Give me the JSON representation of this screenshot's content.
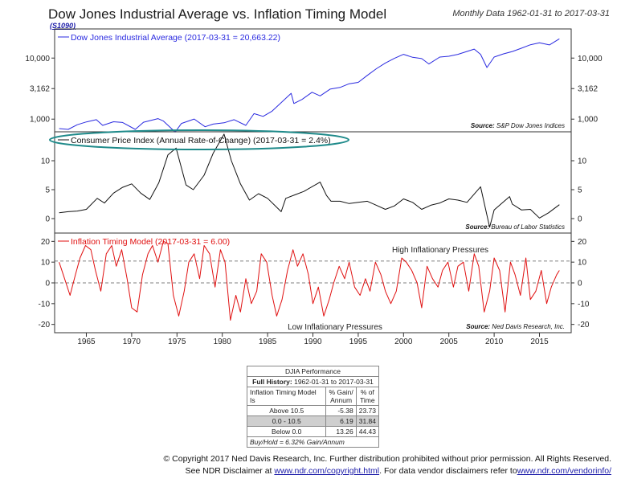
{
  "header": {
    "title": "Dow Jones Industrial Average vs. Inflation Timing Model",
    "code": "(S1090)",
    "subtitle": "Monthly Data 1962-01-31 to 2017-03-31"
  },
  "colors": {
    "djia": "#2a2ae0",
    "cpi": "#111111",
    "model": "#e01010",
    "ellipse": "#1f8a8a"
  },
  "chart_data": [
    {
      "type": "line",
      "panel": "top",
      "scale": "log",
      "legend": "Dow Jones Industrial Average (2017-03-31 = 20,663.22)",
      "source_label": "Source:",
      "source_text": "S&P Dow Jones Indices",
      "yticks": [
        1000,
        3162,
        10000
      ],
      "ytick_labels": [
        "1,000",
        "3,162",
        "10,000"
      ],
      "ylim": [
        620,
        30000
      ],
      "x": [
        1962.0,
        1963.0,
        1964.0,
        1965.0,
        1966.1,
        1966.8,
        1968.0,
        1969.0,
        1970.4,
        1971.3,
        1972.9,
        1973.5,
        1974.8,
        1975.5,
        1976.9,
        1978.1,
        1979.0,
        1980.2,
        1981.3,
        1982.6,
        1983.5,
        1984.5,
        1985.5,
        1987.6,
        1987.9,
        1988.8,
        1989.9,
        1990.8,
        1991.9,
        1993.0,
        1994.0,
        1995.0,
        1996.0,
        1997.0,
        1998.0,
        1999.0,
        2000.0,
        2001.0,
        2002.0,
        2002.8,
        2004.0,
        2005.0,
        2006.0,
        2007.8,
        2008.5,
        2009.2,
        2010.0,
        2011.0,
        2012.0,
        2013.0,
        2014.0,
        2015.0,
        2016.1,
        2017.2
      ],
      "values": [
        700,
        680,
        810,
        900,
        980,
        790,
        905,
        880,
        680,
        890,
        1020,
        930,
        615,
        850,
        1004,
        750,
        830,
        870,
        980,
        790,
        1230,
        1110,
        1350,
        2650,
        1800,
        2100,
        2750,
        2400,
        3100,
        3300,
        3800,
        4000,
        5200,
        6700,
        8300,
        9900,
        11500,
        10300,
        9800,
        8000,
        10400,
        10700,
        11500,
        14000,
        11500,
        7000,
        10400,
        11700,
        12800,
        14500,
        16500,
        17800,
        16400,
        20663
      ]
    },
    {
      "type": "line",
      "panel": "middle",
      "legend": "Consumer Price Index (Annual Rate-of-Change) (2017-03-31 = 2.4%)",
      "source_label": "Source:",
      "source_text": "Bureau of Labor Statistics",
      "yticks": [
        0,
        5,
        10
      ],
      "ytick_labels": [
        "0",
        "5",
        "10"
      ],
      "ylim": [
        -2.5,
        15
      ],
      "x": [
        1962.0,
        1963.0,
        1964.0,
        1965.0,
        1966.2,
        1967.0,
        1968.0,
        1969.0,
        1970.0,
        1971.0,
        1972.0,
        1973.0,
        1974.0,
        1974.9,
        1976.0,
        1976.8,
        1978.0,
        1979.0,
        1980.2,
        1981.0,
        1982.0,
        1983.0,
        1984.0,
        1985.0,
        1986.5,
        1987.0,
        1988.0,
        1989.0,
        1990.8,
        1991.5,
        1992.0,
        1993.0,
        1994.0,
        1995.0,
        1996.0,
        1997.0,
        1998.0,
        1999.0,
        2000.0,
        2001.0,
        2002.0,
        2003.0,
        2004.0,
        2005.0,
        2006.0,
        2007.0,
        2008.5,
        2009.5,
        2010.0,
        2011.7,
        2012.0,
        2013.0,
        2014.0,
        2015.0,
        2016.0,
        2017.2
      ],
      "values": [
        1.0,
        1.2,
        1.3,
        1.6,
        3.5,
        2.7,
        4.4,
        5.4,
        6.0,
        4.4,
        3.3,
        6.2,
        11.0,
        12.2,
        5.8,
        5.0,
        7.5,
        11.3,
        14.6,
        10.0,
        6.0,
        3.2,
        4.3,
        3.5,
        1.2,
        3.5,
        4.1,
        4.7,
        6.3,
        4.0,
        3.0,
        3.0,
        2.6,
        2.8,
        3.0,
        2.3,
        1.6,
        2.2,
        3.4,
        2.8,
        1.6,
        2.3,
        2.7,
        3.4,
        3.2,
        2.8,
        5.5,
        -1.5,
        1.5,
        3.8,
        2.5,
        1.5,
        1.6,
        0.1,
        1.0,
        2.4
      ]
    },
    {
      "type": "line",
      "panel": "bottom",
      "legend": "Inflation Timing Model (2017-03-31 = 6.00)",
      "source_label": "Source:",
      "source_text": "Ned Davis Research, Inc.",
      "high_label": "High Inflationary Pressures",
      "low_label": "Low Inflationary Pressures",
      "thresholds": [
        10.5,
        0
      ],
      "yticks": [
        -20,
        -10,
        0,
        10,
        20
      ],
      "ytick_labels": [
        "-20",
        "-10",
        "0",
        "10",
        "20"
      ],
      "ylim": [
        -24,
        24
      ],
      "xticks": [
        1965,
        1970,
        1975,
        1980,
        1985,
        1990,
        1995,
        2000,
        2005,
        2010,
        2015
      ],
      "xtick_labels": [
        "1965",
        "1970",
        "1975",
        "1980",
        "1985",
        "1990",
        "1995",
        "2000",
        "2005",
        "2010",
        "2015"
      ],
      "xlim": [
        1961.5,
        2018.5
      ],
      "x": [
        1962.0,
        1962.6,
        1963.2,
        1963.8,
        1964.3,
        1964.9,
        1965.5,
        1966.0,
        1966.6,
        1967.2,
        1967.8,
        1968.3,
        1968.9,
        1969.5,
        1970.0,
        1970.6,
        1971.2,
        1971.8,
        1972.3,
        1972.9,
        1973.5,
        1974.0,
        1974.6,
        1975.2,
        1975.8,
        1976.3,
        1976.9,
        1977.5,
        1978.0,
        1978.6,
        1979.2,
        1979.8,
        1980.3,
        1980.9,
        1981.5,
        1982.0,
        1982.6,
        1983.2,
        1983.8,
        1984.3,
        1984.9,
        1985.5,
        1986.0,
        1986.6,
        1987.2,
        1987.8,
        1988.3,
        1988.9,
        1989.5,
        1990.0,
        1990.6,
        1991.2,
        1991.8,
        1992.3,
        1992.9,
        1993.5,
        1994.0,
        1994.6,
        1995.2,
        1995.8,
        1996.3,
        1996.9,
        1997.5,
        1998.0,
        1998.6,
        1999.2,
        1999.8,
        2000.3,
        2000.9,
        2001.5,
        2002.0,
        2002.6,
        2003.2,
        2003.8,
        2004.3,
        2004.9,
        2005.5,
        2006.0,
        2006.6,
        2007.2,
        2007.8,
        2008.3,
        2008.9,
        2009.5,
        2010.0,
        2010.6,
        2011.2,
        2011.8,
        2012.3,
        2012.9,
        2013.5,
        2014.0,
        2014.6,
        2015.2,
        2015.8,
        2016.3,
        2016.9,
        2017.2
      ],
      "values": [
        10,
        2,
        -6,
        4,
        12,
        18,
        16,
        6,
        -4,
        14,
        18,
        8,
        16,
        2,
        -12,
        -14,
        4,
        14,
        18,
        10,
        20,
        19,
        -6,
        -16,
        -4,
        10,
        14,
        2,
        18,
        14,
        -2,
        16,
        10,
        -18,
        -6,
        -14,
        2,
        -10,
        -4,
        14,
        10,
        -6,
        -16,
        -8,
        6,
        16,
        8,
        14,
        4,
        -10,
        -2,
        -16,
        -8,
        0,
        8,
        2,
        10,
        -2,
        -6,
        2,
        -4,
        10,
        4,
        -4,
        -10,
        -4,
        12,
        10,
        6,
        0,
        -12,
        8,
        2,
        -2,
        6,
        10,
        -2,
        8,
        10,
        -4,
        14,
        8,
        -14,
        -4,
        12,
        6,
        -14,
        10,
        4,
        -6,
        12,
        -8,
        -4,
        6,
        -10,
        -2,
        4,
        6
      ]
    }
  ],
  "performance": {
    "title": "DJIA Performance",
    "history_label": "Full History:",
    "history_range": "1962-01-31 to 2017-03-31",
    "col_model": "Inflation Timing Model Is",
    "col_gain_1": "% Gain/",
    "col_gain_2": "Annum",
    "col_time_1": "% of",
    "col_time_2": "Time",
    "rows": [
      {
        "label": "Above 10.5",
        "gain": "-5.38",
        "time": "23.73"
      },
      {
        "label": "0.0 - 10.5",
        "gain": "6.19",
        "time": "31.84"
      },
      {
        "label": "Below 0.0",
        "gain": "13.26",
        "time": "44.43"
      }
    ],
    "buy_hold": "Buy/Hold = 6.32% Gain/Annum"
  },
  "footer": {
    "line1": "© Copyright 2017 Ned Davis Research, Inc. Further distribution prohibited without prior permission. All Rights Reserved.",
    "line2_pre": "See NDR Disclaimer at ",
    "line2_link1": "www.ndr.com/copyright.html",
    "line2_mid": ". For data vendor disclaimers refer to",
    "line2_link2": "www.ndr.com/vendorinfo/"
  }
}
